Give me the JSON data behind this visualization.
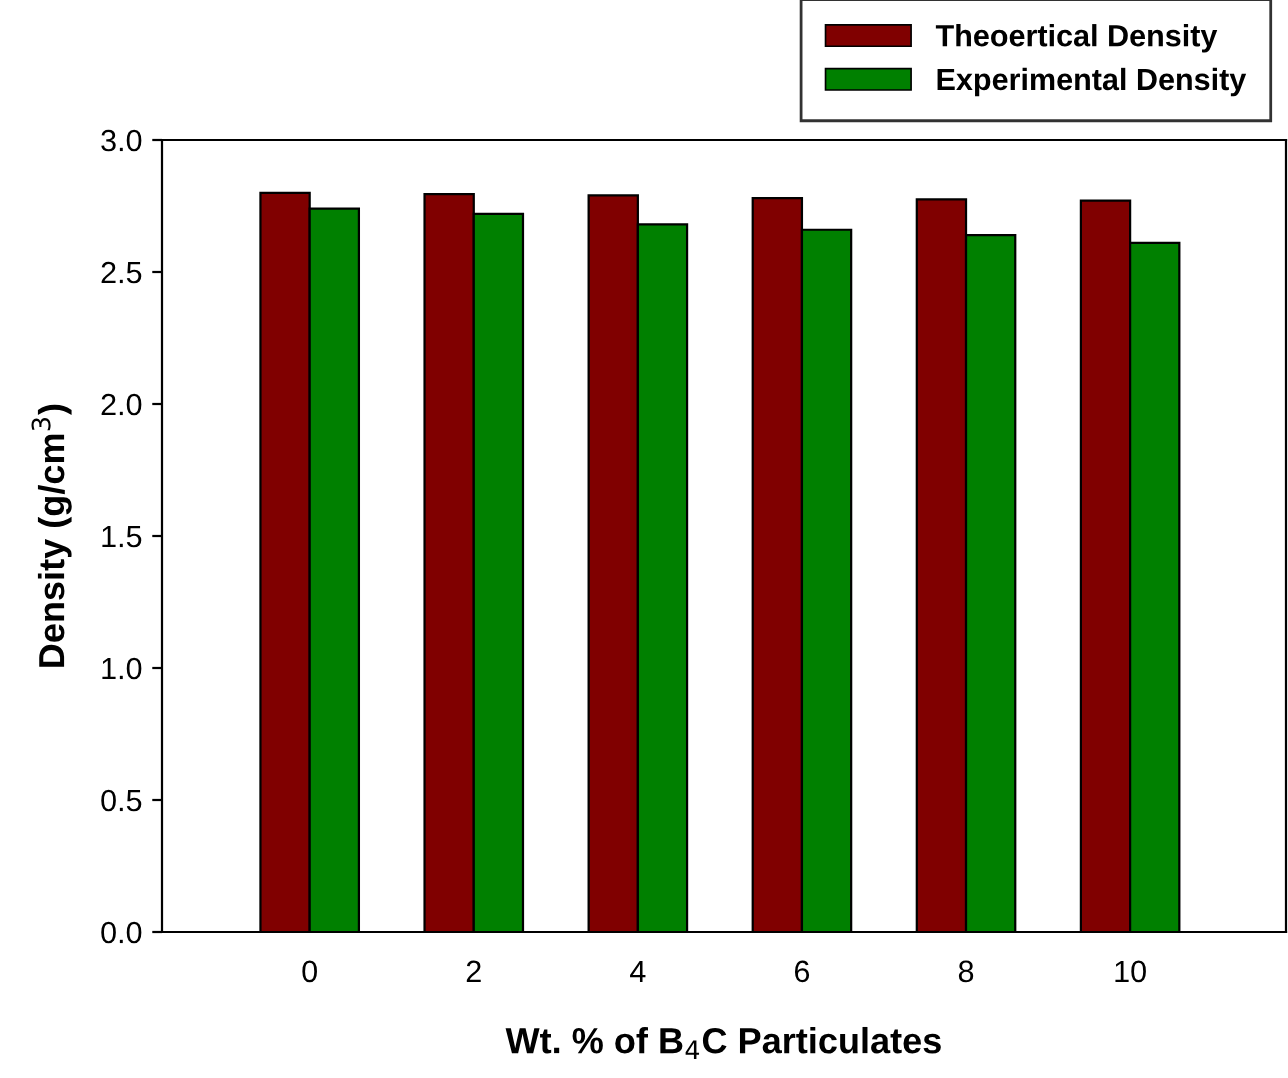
{
  "chart_data": {
    "type": "bar",
    "xlabel": "Wt. % of B$_{4}$C Particulates",
    "ylabel": "Density (g/cm$^{3}$)",
    "categories": [
      "0",
      "2",
      "4",
      "6",
      "8",
      "10"
    ],
    "series": [
      {
        "name": "Theoertical Density",
        "color": "#800000",
        "values": [
          2.8,
          2.795,
          2.79,
          2.78,
          2.775,
          2.77
        ]
      },
      {
        "name": "Experimental Density",
        "color": "#008000",
        "values": [
          2.74,
          2.72,
          2.68,
          2.66,
          2.64,
          2.61
        ]
      }
    ],
    "ylim": [
      0,
      3.0
    ],
    "yticks": [
      {
        "value": 0,
        "label": "0.0"
      },
      0.5,
      {
        "value": 1,
        "label": "1.0"
      },
      1.5,
      {
        "value": 2,
        "label": "2.0"
      },
      2.5,
      {
        "value": 3,
        "label": "3.0"
      }
    ],
    "legend": "top right",
    "grid": false
  }
}
